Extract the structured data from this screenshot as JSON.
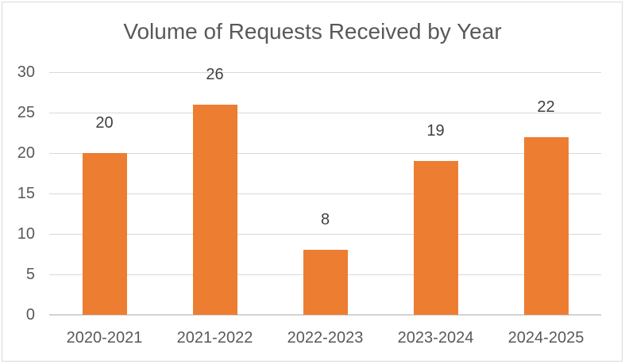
{
  "chart_data": {
    "type": "bar",
    "title": "Volume of Requests Received by Year",
    "categories": [
      "2020-2021",
      "2021-2022",
      "2022-2023",
      "2023-2024",
      "2024-2025"
    ],
    "values": [
      20,
      26,
      8,
      19,
      22
    ],
    "data_labels": [
      "20",
      "26",
      "8",
      "19",
      "22"
    ],
    "xlabel": "",
    "ylabel": "",
    "ylim": [
      0,
      30
    ],
    "y_ticks": [
      0,
      5,
      10,
      15,
      20,
      25,
      30
    ],
    "grid": true,
    "legend": "none",
    "colors": {
      "bar": "#ED7D31",
      "gridline": "#D9D9D9",
      "axis_line": "#D2D2D2",
      "title_text": "#595959",
      "axis_text": "#595959",
      "data_label_text": "#404040",
      "frame_border": "#D9D9D9",
      "background": "#FFFFFF"
    }
  }
}
